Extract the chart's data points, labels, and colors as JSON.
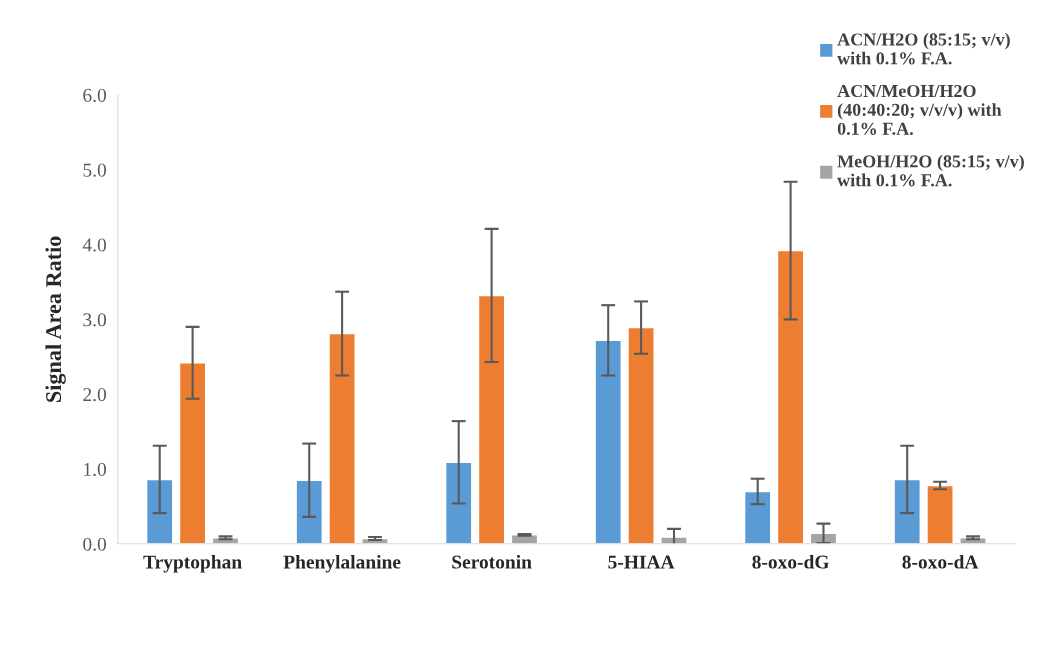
{
  "chart_data": {
    "type": "bar",
    "ylabel": "Signal Area Ratio",
    "categories": [
      "Tryptophan",
      "Phenylalanine",
      "Serotonin",
      "5-HIAA",
      "8-oxo-dG",
      "8-oxo-dA"
    ],
    "series": [
      {
        "name": "ACN/H2O (85:15; v/v)\nwith 0.1% F.A.",
        "color": "#5b9bd5",
        "values": [
          0.86,
          0.85,
          1.09,
          2.72,
          0.7,
          0.86
        ],
        "errors": [
          0.45,
          0.49,
          0.55,
          0.47,
          0.17,
          0.45
        ]
      },
      {
        "name": "ACN/MeOH/H2O\n(40:40:20; v/v/v) with\n0.1% F.A.",
        "color": "#ed7d31",
        "values": [
          2.42,
          2.81,
          3.32,
          2.89,
          3.92,
          0.78
        ],
        "errors": [
          0.48,
          0.56,
          0.89,
          0.35,
          0.92,
          0.05
        ]
      },
      {
        "name": "MeOH/H2O (85:15; v/v)\nwith 0.1% F.A.",
        "color": "#a5a5a5",
        "values": [
          0.08,
          0.07,
          0.12,
          0.09,
          0.14,
          0.08
        ],
        "errors": [
          0.02,
          0.02,
          0.01,
          0.11,
          0.13,
          0.02
        ]
      }
    ],
    "ylim": [
      0,
      6
    ],
    "yticks": [
      {
        "value": 0,
        "label": "0.0"
      },
      {
        "value": 1,
        "label": "1.0"
      },
      {
        "value": 2,
        "label": "2.0"
      },
      {
        "value": 3,
        "label": "3.0"
      },
      {
        "value": 4,
        "label": "4.0"
      },
      {
        "value": 5,
        "label": "5.0"
      },
      {
        "value": 6,
        "label": "6.0"
      }
    ],
    "legend": "top right",
    "grid": false
  }
}
